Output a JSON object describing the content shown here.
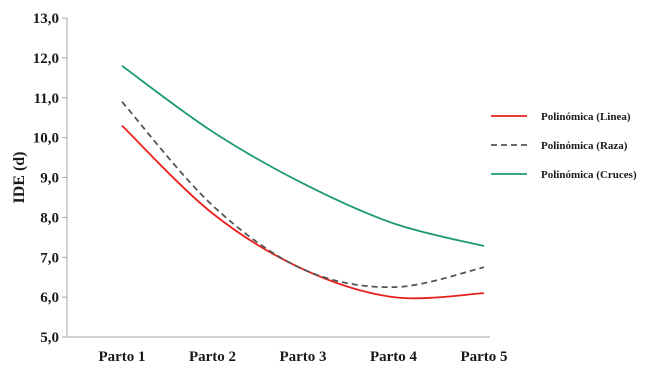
{
  "chart_data": {
    "type": "line",
    "title": "",
    "xlabel": "",
    "ylabel": "IDE (d)",
    "categories": [
      "Parto 1",
      "Parto 2",
      "Parto 3",
      "Parto 4",
      "Parto 5"
    ],
    "ylim": [
      5.0,
      13.0
    ],
    "yticks": [
      "5,0",
      "6,0",
      "7,0",
      "8,0",
      "9,0",
      "10,0",
      "11,0",
      "12,0",
      "13,0"
    ],
    "grid": false,
    "legend_position": "right",
    "series": [
      {
        "name": "Polinómica (Linea)",
        "color": "#e8211d",
        "dash": "solid",
        "values": [
          10.3,
          8.1,
          6.7,
          6.0,
          6.1
        ]
      },
      {
        "name": "Polinómica (Raza)",
        "color": "#555555",
        "dash": "dashed",
        "values": [
          10.9,
          8.3,
          6.7,
          6.25,
          6.75
        ]
      },
      {
        "name": "Polinómica (Cruces)",
        "color": "#1d9a74",
        "dash": "solid",
        "values": [
          11.8,
          10.15,
          8.85,
          7.85,
          7.28
        ]
      }
    ]
  }
}
